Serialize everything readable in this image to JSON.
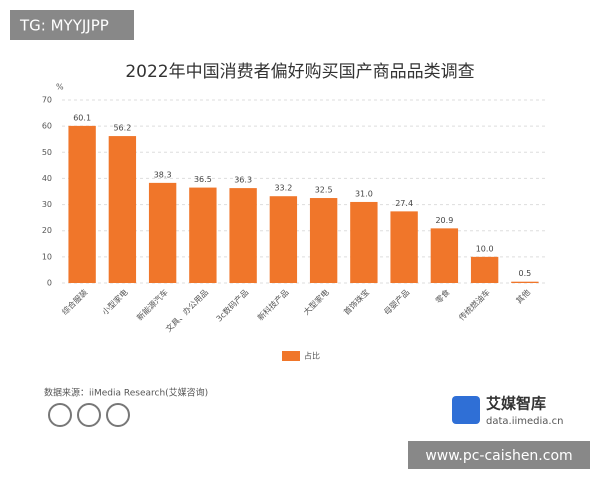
{
  "watermark": "TG: MYYJJPP",
  "chart_data": {
    "type": "bar",
    "title": "2022年中国消费者偏好购买国产商品品类调查",
    "y_unit": "%",
    "categories": [
      "综合服装",
      "小型家电",
      "新能源汽车",
      "文具、办公用品",
      "3c数码产品",
      "新科技产品",
      "大型家电",
      "首饰珠宝",
      "母婴产品",
      "零食",
      "传统燃油车",
      "其他"
    ],
    "series": [
      {
        "name": "占比",
        "color": "#f0762a",
        "values": [
          60.1,
          56.2,
          38.3,
          36.5,
          36.3,
          33.2,
          32.5,
          31.0,
          27.4,
          20.9,
          10.0,
          0.5
        ],
        "value_labels": [
          "60.1",
          "56.2",
          "38.3",
          "36.5",
          "36.3",
          "33.2",
          "32.5",
          "31.0",
          "27.4",
          "20.9",
          "10.0",
          "0.5"
        ]
      }
    ],
    "ylim": [
      0,
      70
    ],
    "yticks": [
      0,
      10,
      20,
      30,
      40,
      50,
      60,
      70
    ],
    "grid": true,
    "legend": "bottom"
  },
  "source": "数据来源：iiMedia Research(艾媒咨询)",
  "logo": {
    "name": "艾媒智库",
    "url": "data.iimedia.cn"
  },
  "footer_watermark": "www.pc-caishen.com"
}
